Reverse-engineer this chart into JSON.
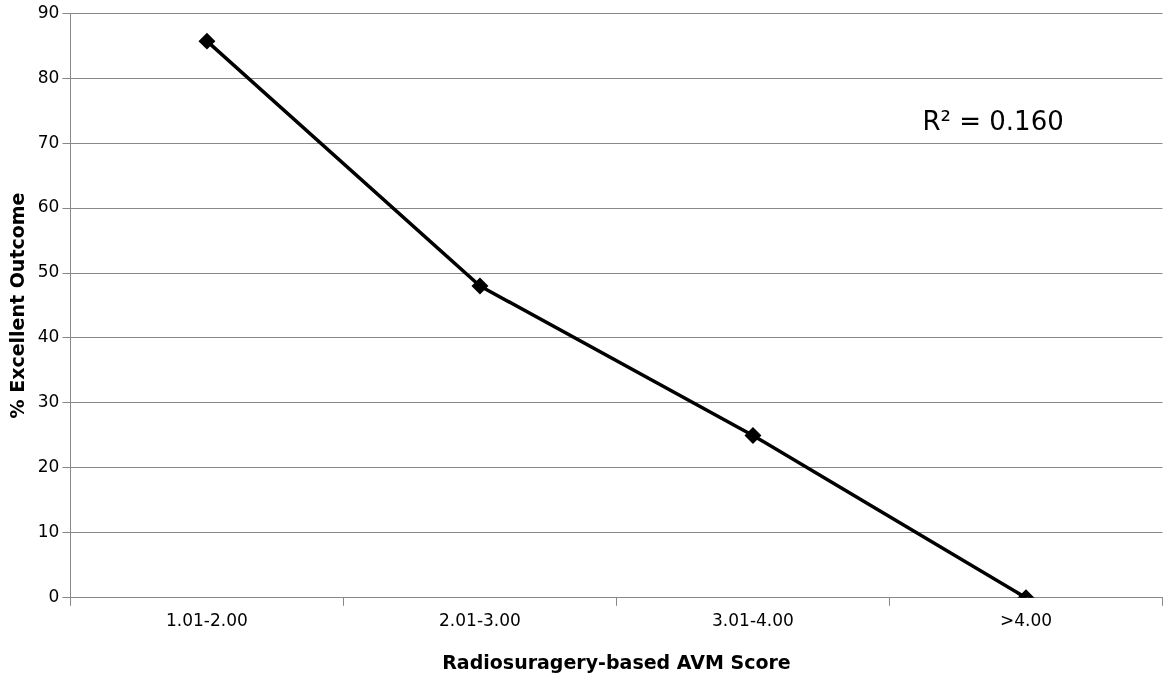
{
  "chart_data": {
    "type": "line",
    "xlabel": "Radiosuragery-based AVM Score",
    "ylabel": "% Excellent Outcome",
    "categories": [
      "1.01-2.00",
      "2.01-3.00",
      "3.01-4.00",
      ">4.00"
    ],
    "series": [
      {
        "color": "#000000",
        "values": [
          85.7,
          48,
          25,
          0
        ]
      }
    ],
    "ylim": [
      0,
      90
    ],
    "yticks": [
      0,
      10,
      20,
      30,
      40,
      50,
      60,
      70,
      80,
      90
    ],
    "grid": "y",
    "legend": false,
    "marker": "diamond",
    "line_style": "solid",
    "annotations": [
      "R² = 0.160"
    ]
  }
}
